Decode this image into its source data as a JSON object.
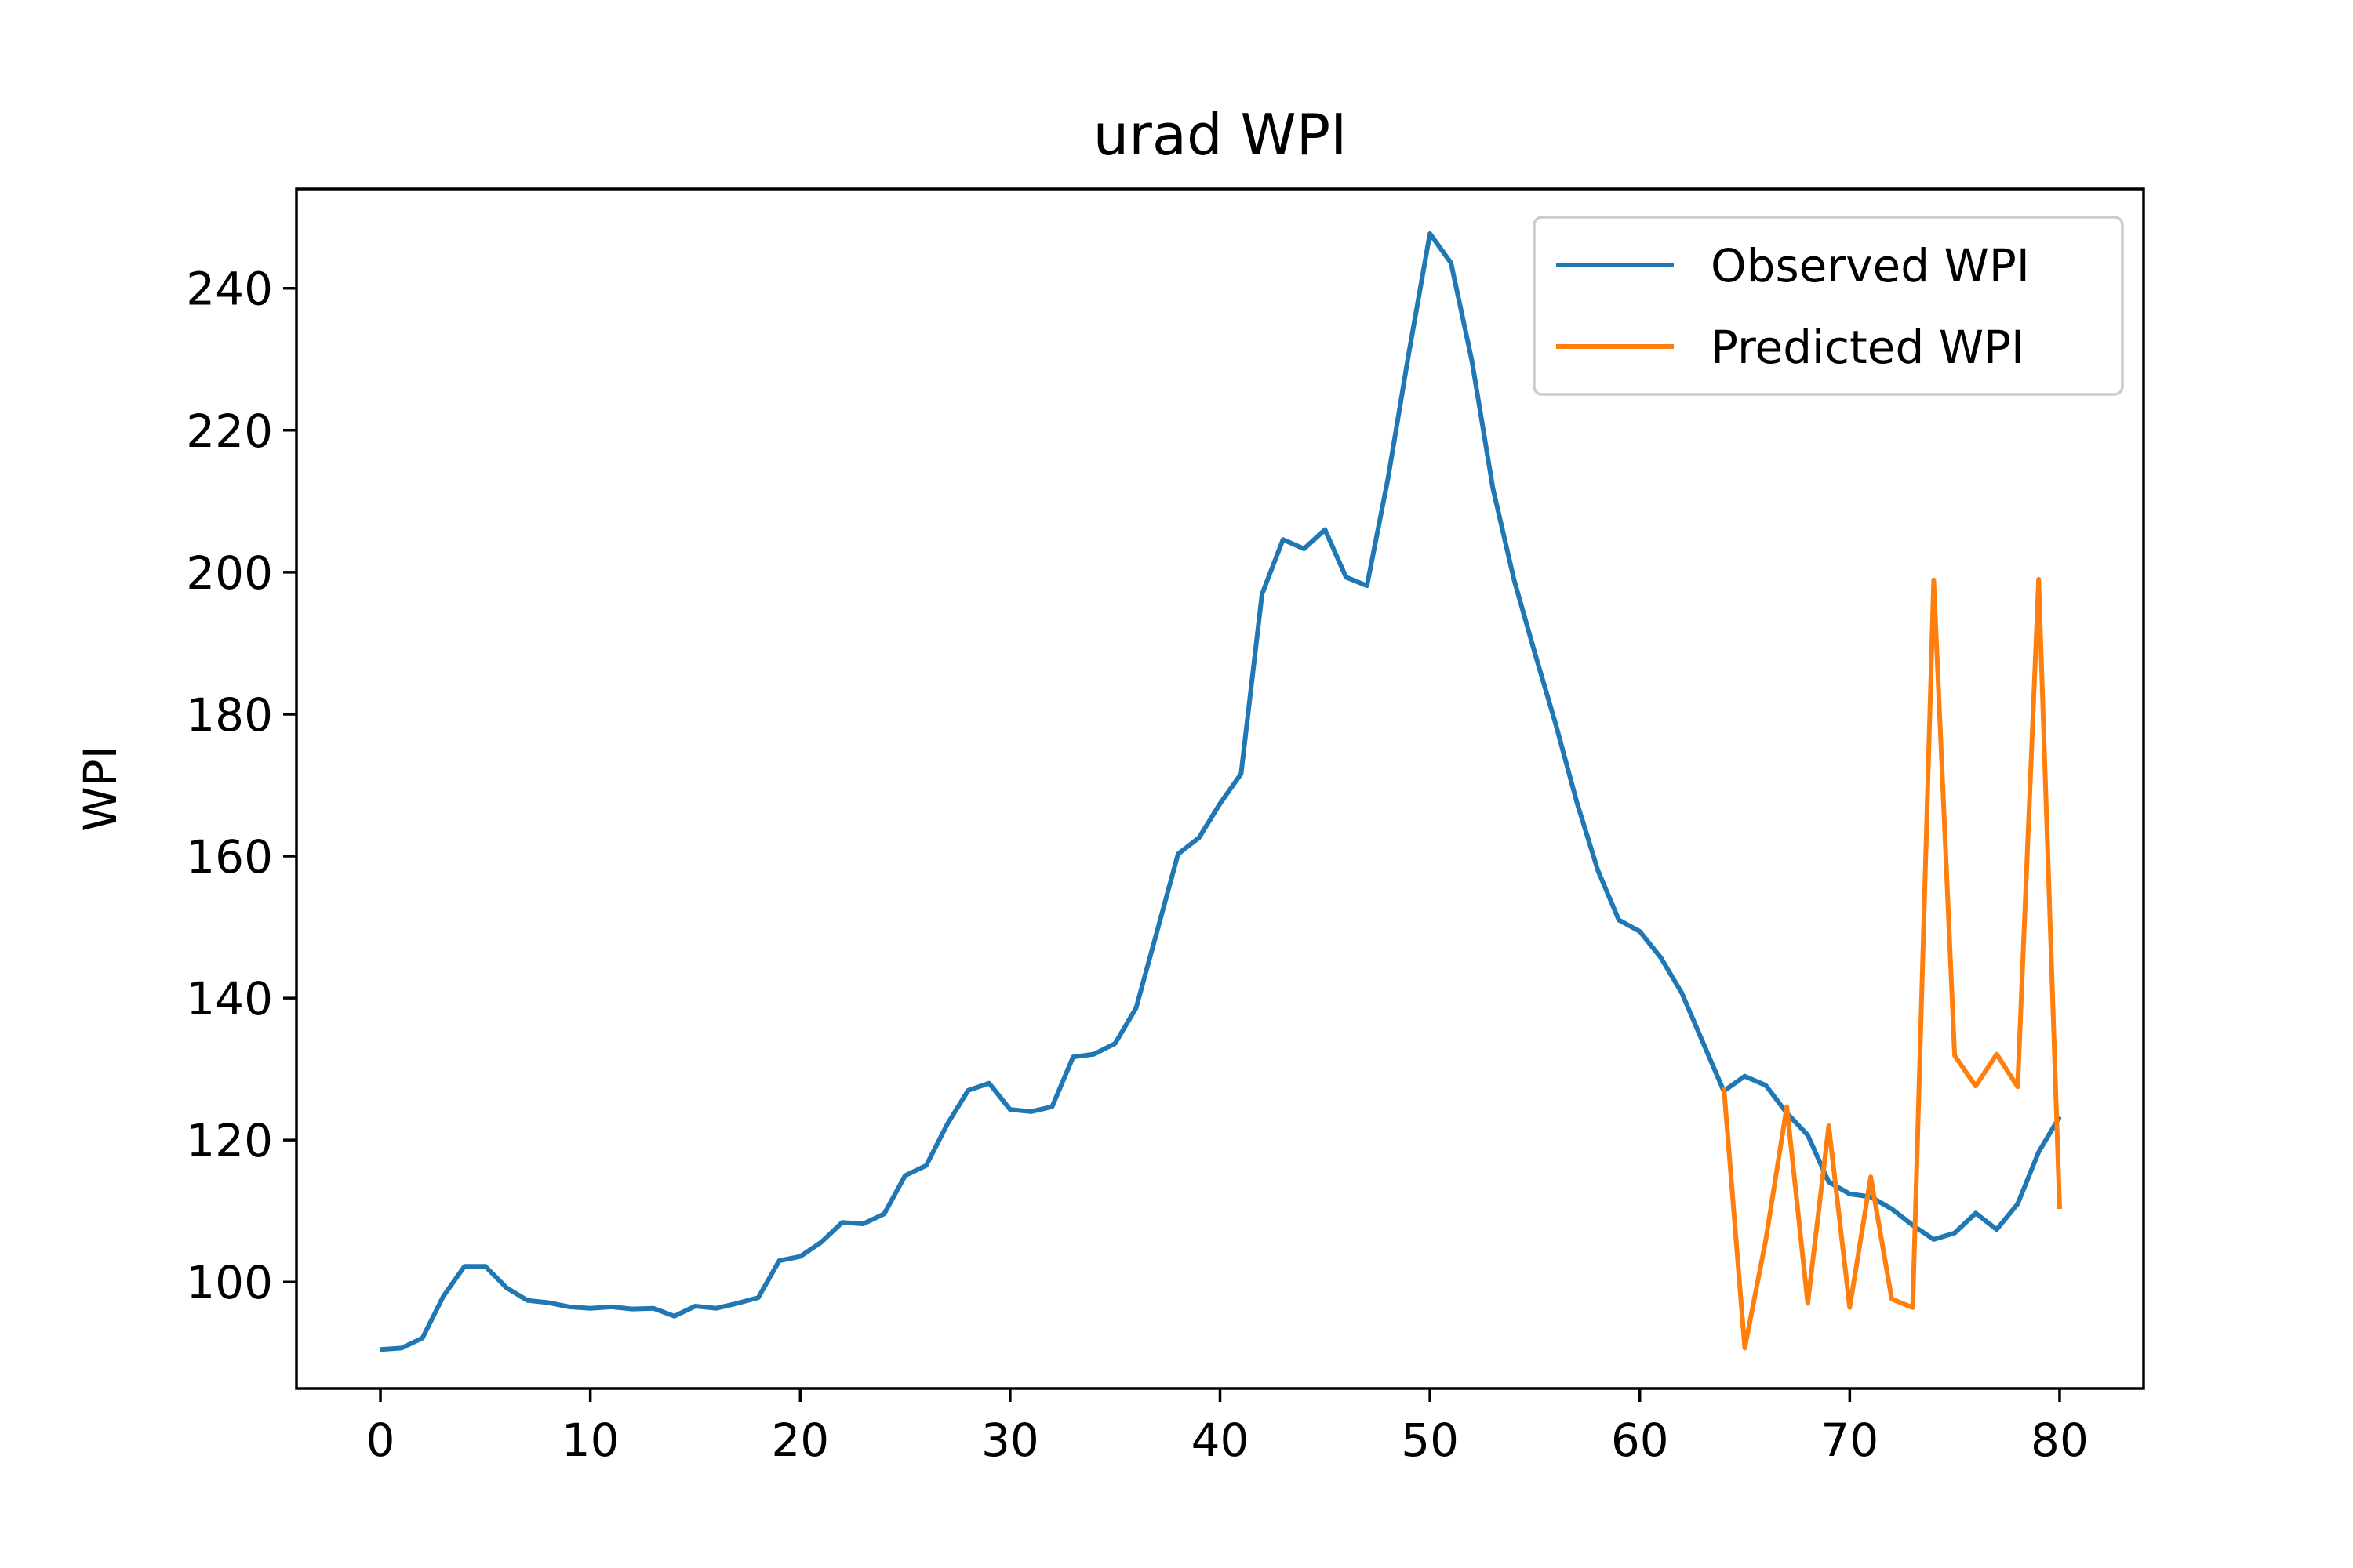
{
  "chart_data": {
    "type": "line",
    "title": "urad WPI",
    "xlabel": "",
    "ylabel": "WPI",
    "xlim": [
      -4,
      84
    ],
    "ylim": [
      85,
      254
    ],
    "x_ticks": [
      0,
      10,
      20,
      30,
      40,
      50,
      60,
      70,
      80
    ],
    "y_ticks": [
      100,
      120,
      140,
      160,
      180,
      200,
      220,
      240
    ],
    "x_tick_labels": [
      "0",
      "10",
      "20",
      "30",
      "40",
      "50",
      "60",
      "70",
      "80"
    ],
    "y_tick_labels": [
      "100",
      "120",
      "140",
      "160",
      "180",
      "200",
      "220",
      "240"
    ],
    "grid": false,
    "legend": {
      "position": "top-right",
      "entries": [
        "Observed WPI",
        "Predicted WPI"
      ]
    },
    "series": [
      {
        "name": "Observed WPI",
        "color": "#1f77b4",
        "x_start": 0,
        "values": [
          90.5,
          90.7,
          92.1,
          98.0,
          102.2,
          102.2,
          99.2,
          97.4,
          97.1,
          96.5,
          96.3,
          96.5,
          96.2,
          96.3,
          95.2,
          96.6,
          96.3,
          97.0,
          97.8,
          103.0,
          103.6,
          105.6,
          108.4,
          108.2,
          109.6,
          115.0,
          116.4,
          122.2,
          127.0,
          128.0,
          124.3,
          124.0,
          124.7,
          131.7,
          132.1,
          133.6,
          138.6,
          149.4,
          160.3,
          162.6,
          167.4,
          171.6,
          196.9,
          204.6,
          203.3,
          206.0,
          199.3,
          198.1,
          213.2,
          231.0,
          247.7,
          243.6,
          229.8,
          211.8,
          199.0,
          188.6,
          178.5,
          167.6,
          158.0,
          151.0,
          149.4,
          145.7,
          140.7,
          133.8,
          126.9,
          129.0,
          127.7,
          123.8,
          120.7,
          114.1,
          112.4,
          112.0,
          110.3,
          108.0,
          106.0,
          106.9,
          109.7,
          107.4,
          111.0,
          118.3,
          123.3
        ]
      },
      {
        "name": "Predicted WPI",
        "color": "#ff7f0e",
        "x_start": 64,
        "values": [
          127.5,
          90.7,
          105.9,
          124.7,
          97.0,
          122.0,
          96.4,
          114.8,
          97.6,
          96.4,
          198.9,
          131.9,
          127.6,
          132.1,
          127.5,
          199.0,
          110.3
        ]
      }
    ]
  }
}
